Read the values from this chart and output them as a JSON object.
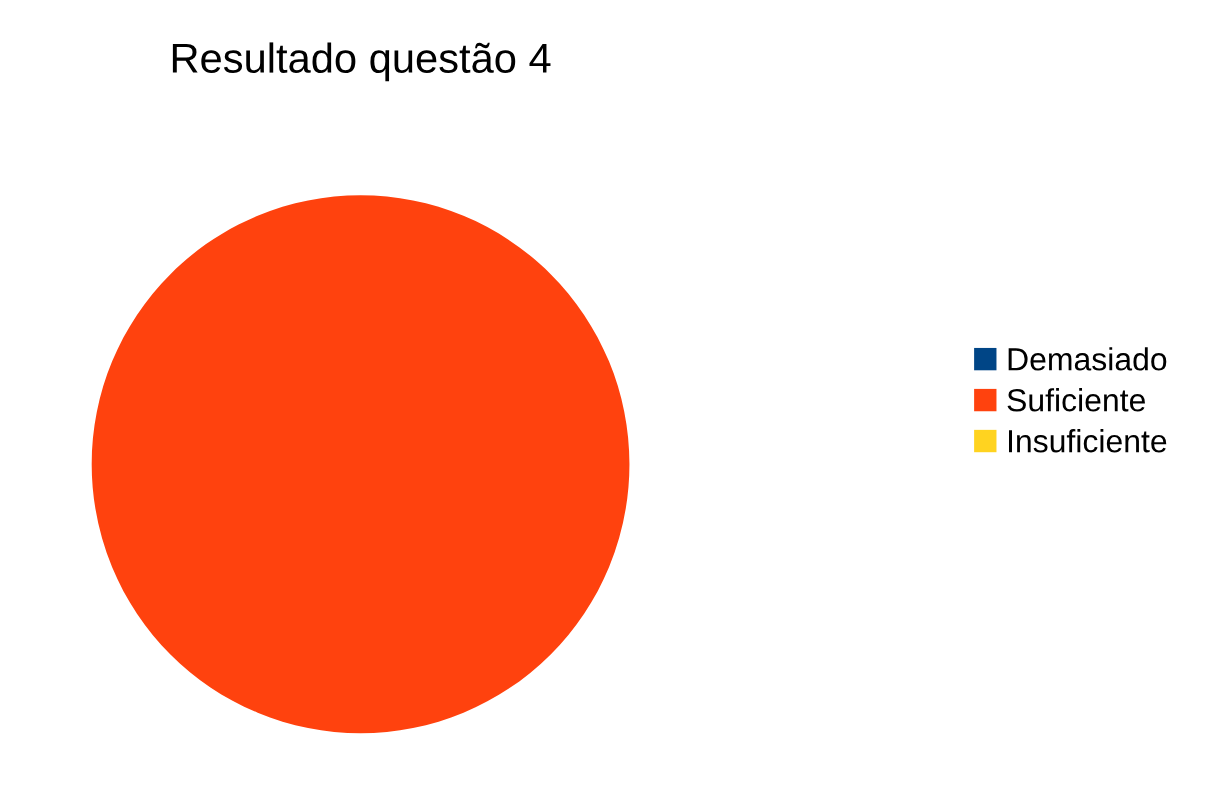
{
  "chart_data": {
    "type": "pie",
    "title": "Resultado questão 4",
    "categories": [
      "Demasiado",
      "Suficiente",
      "Insuficiente"
    ],
    "values": [
      0,
      100,
      0
    ],
    "colors": [
      "#004586",
      "#ff420e",
      "#ffd320"
    ],
    "legend": "right"
  }
}
